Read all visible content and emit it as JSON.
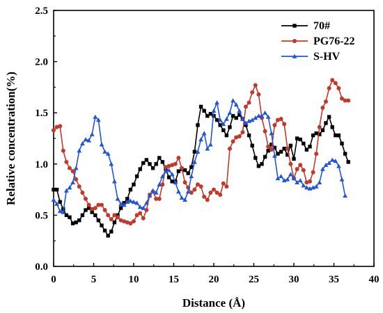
{
  "chart_data": {
    "type": "line",
    "title": "",
    "xlabel": "Distance (Å)",
    "ylabel": "Relative concentration(%)",
    "xlim": [
      0,
      40
    ],
    "ylim": [
      0,
      2.5
    ],
    "x_ticks": [
      0,
      5,
      10,
      15,
      20,
      25,
      30,
      35,
      40
    ],
    "y_ticks": [
      0.0,
      0.5,
      1.0,
      1.5,
      2.0,
      2.5
    ],
    "x_tick_labels": [
      "0",
      "5",
      "10",
      "15",
      "20",
      "25",
      "30",
      "35",
      "40"
    ],
    "y_tick_labels": [
      "0.0",
      "0.5",
      "1.0",
      "1.5",
      "2.0",
      "2.5"
    ],
    "grid": false,
    "legend_position": "top-right",
    "series": [
      {
        "name": "70#",
        "color": "#000000",
        "marker": "square",
        "points": [
          [
            0,
            0.75
          ],
          [
            0.4,
            0.75
          ],
          [
            0.8,
            0.63
          ],
          [
            1.2,
            0.56
          ],
          [
            1.6,
            0.5
          ],
          [
            2.0,
            0.48
          ],
          [
            2.4,
            0.42
          ],
          [
            2.8,
            0.43
          ],
          [
            3.2,
            0.45
          ],
          [
            3.6,
            0.5
          ],
          [
            4.0,
            0.55
          ],
          [
            4.4,
            0.57
          ],
          [
            4.8,
            0.53
          ],
          [
            5.2,
            0.5
          ],
          [
            5.6,
            0.45
          ],
          [
            6.0,
            0.4
          ],
          [
            6.4,
            0.35
          ],
          [
            6.8,
            0.3
          ],
          [
            7.2,
            0.34
          ],
          [
            7.6,
            0.43
          ],
          [
            8.0,
            0.5
          ],
          [
            8.4,
            0.57
          ],
          [
            8.8,
            0.62
          ],
          [
            9.2,
            0.66
          ],
          [
            9.6,
            0.75
          ],
          [
            10.0,
            0.8
          ],
          [
            10.4,
            0.88
          ],
          [
            10.8,
            0.95
          ],
          [
            11.2,
            1.01
          ],
          [
            11.6,
            1.04
          ],
          [
            12.0,
            1.0
          ],
          [
            12.4,
            0.96
          ],
          [
            12.8,
            1.0
          ],
          [
            13.2,
            1.06
          ],
          [
            13.6,
            1.02
          ],
          [
            14.0,
            0.95
          ],
          [
            14.4,
            0.87
          ],
          [
            14.8,
            0.83
          ],
          [
            15.2,
            0.83
          ],
          [
            15.6,
            0.93
          ],
          [
            16.0,
            0.95
          ],
          [
            16.4,
            0.94
          ],
          [
            16.8,
            0.91
          ],
          [
            17.2,
            0.97
          ],
          [
            17.6,
            1.12
          ],
          [
            18.0,
            1.38
          ],
          [
            18.4,
            1.56
          ],
          [
            18.8,
            1.52
          ],
          [
            19.2,
            1.47
          ],
          [
            19.6,
            1.49
          ],
          [
            20.0,
            1.47
          ],
          [
            20.4,
            1.43
          ],
          [
            20.8,
            1.38
          ],
          [
            21.2,
            1.33
          ],
          [
            21.6,
            1.28
          ],
          [
            22.0,
            1.36
          ],
          [
            22.4,
            1.47
          ],
          [
            22.8,
            1.45
          ],
          [
            23.2,
            1.48
          ],
          [
            23.6,
            1.44
          ],
          [
            24.0,
            1.38
          ],
          [
            24.4,
            1.28
          ],
          [
            24.8,
            1.18
          ],
          [
            25.2,
            1.06
          ],
          [
            25.6,
            0.98
          ],
          [
            26.0,
            1.0
          ],
          [
            26.4,
            1.07
          ],
          [
            26.8,
            1.13
          ],
          [
            27.2,
            1.19
          ],
          [
            27.6,
            1.16
          ],
          [
            28.0,
            1.1
          ],
          [
            28.4,
            1.12
          ],
          [
            28.8,
            1.15
          ],
          [
            29.2,
            1.09
          ],
          [
            29.6,
            1.18
          ],
          [
            30.0,
            1.05
          ],
          [
            30.4,
            1.25
          ],
          [
            30.8,
            1.24
          ],
          [
            31.2,
            1.2
          ],
          [
            31.6,
            1.14
          ],
          [
            32.0,
            1.17
          ],
          [
            32.4,
            1.28
          ],
          [
            32.8,
            1.3
          ],
          [
            33.2,
            1.29
          ],
          [
            33.6,
            1.33
          ],
          [
            34.0,
            1.4
          ],
          [
            34.4,
            1.46
          ],
          [
            34.8,
            1.36
          ],
          [
            35.2,
            1.28
          ],
          [
            35.6,
            1.28
          ],
          [
            36.0,
            1.2
          ],
          [
            36.4,
            1.1
          ],
          [
            36.8,
            1.02
          ]
        ]
      },
      {
        "name": "PG76-22",
        "color": "#c0392b",
        "marker": "circle",
        "points": [
          [
            0,
            1.33
          ],
          [
            0.4,
            1.36
          ],
          [
            0.8,
            1.37
          ],
          [
            1.2,
            1.13
          ],
          [
            1.6,
            1.02
          ],
          [
            2.0,
            0.96
          ],
          [
            2.4,
            0.93
          ],
          [
            2.8,
            0.85
          ],
          [
            3.2,
            0.78
          ],
          [
            3.6,
            0.72
          ],
          [
            4.0,
            0.66
          ],
          [
            4.4,
            0.6
          ],
          [
            4.8,
            0.56
          ],
          [
            5.2,
            0.57
          ],
          [
            5.6,
            0.6
          ],
          [
            6.0,
            0.6
          ],
          [
            6.4,
            0.55
          ],
          [
            6.8,
            0.5
          ],
          [
            7.2,
            0.46
          ],
          [
            7.6,
            0.5
          ],
          [
            8.0,
            0.48
          ],
          [
            8.4,
            0.45
          ],
          [
            8.8,
            0.44
          ],
          [
            9.2,
            0.43
          ],
          [
            9.6,
            0.42
          ],
          [
            10.0,
            0.44
          ],
          [
            10.4,
            0.5
          ],
          [
            10.8,
            0.52
          ],
          [
            11.2,
            0.47
          ],
          [
            11.6,
            0.55
          ],
          [
            12.0,
            0.7
          ],
          [
            12.4,
            0.73
          ],
          [
            12.8,
            0.66
          ],
          [
            13.2,
            0.66
          ],
          [
            13.6,
            0.8
          ],
          [
            14.0,
            0.97
          ],
          [
            14.4,
            0.98
          ],
          [
            14.8,
            0.99
          ],
          [
            15.2,
            1.0
          ],
          [
            15.6,
            1.06
          ],
          [
            16.0,
            0.96
          ],
          [
            16.4,
            0.82
          ],
          [
            16.8,
            0.77
          ],
          [
            17.2,
            0.72
          ],
          [
            17.6,
            0.75
          ],
          [
            18.0,
            0.8
          ],
          [
            18.4,
            0.78
          ],
          [
            18.8,
            0.68
          ],
          [
            19.2,
            0.65
          ],
          [
            19.6,
            0.72
          ],
          [
            20.0,
            0.75
          ],
          [
            20.4,
            0.72
          ],
          [
            20.8,
            0.7
          ],
          [
            21.2,
            0.81
          ],
          [
            21.6,
            0.78
          ],
          [
            22.0,
            1.15
          ],
          [
            22.4,
            1.22
          ],
          [
            22.8,
            1.26
          ],
          [
            23.2,
            1.27
          ],
          [
            23.6,
            1.31
          ],
          [
            24.0,
            1.56
          ],
          [
            24.4,
            1.6
          ],
          [
            24.8,
            1.7
          ],
          [
            25.2,
            1.77
          ],
          [
            25.6,
            1.68
          ],
          [
            26.0,
            1.45
          ],
          [
            26.4,
            1.32
          ],
          [
            26.8,
            1.17
          ],
          [
            27.2,
            1.14
          ],
          [
            27.6,
            1.38
          ],
          [
            28.0,
            1.43
          ],
          [
            28.4,
            1.44
          ],
          [
            28.8,
            1.39
          ],
          [
            29.2,
            1.15
          ],
          [
            29.6,
            1.0
          ],
          [
            30.0,
            0.86
          ],
          [
            30.4,
            0.95
          ],
          [
            30.8,
            0.99
          ],
          [
            31.2,
            0.94
          ],
          [
            31.6,
            0.82
          ],
          [
            32.0,
            0.83
          ],
          [
            32.4,
            0.92
          ],
          [
            32.8,
            1.1
          ],
          [
            33.2,
            1.36
          ],
          [
            33.6,
            1.55
          ],
          [
            34.0,
            1.61
          ],
          [
            34.4,
            1.74
          ],
          [
            34.8,
            1.82
          ],
          [
            35.2,
            1.79
          ],
          [
            35.6,
            1.74
          ],
          [
            36.0,
            1.64
          ],
          [
            36.4,
            1.62
          ],
          [
            36.8,
            1.62
          ]
        ]
      },
      {
        "name": "S-HV",
        "color": "#1f55d6",
        "marker": "triangle",
        "points": [
          [
            0,
            0.65
          ],
          [
            0.4,
            0.61
          ],
          [
            0.8,
            0.54
          ],
          [
            1.2,
            0.53
          ],
          [
            1.6,
            0.74
          ],
          [
            2.0,
            0.77
          ],
          [
            2.4,
            0.82
          ],
          [
            2.8,
            0.96
          ],
          [
            3.2,
            1.13
          ],
          [
            3.6,
            1.2
          ],
          [
            4.0,
            1.24
          ],
          [
            4.4,
            1.23
          ],
          [
            4.8,
            1.29
          ],
          [
            5.2,
            1.46
          ],
          [
            5.6,
            1.43
          ],
          [
            6.0,
            1.19
          ],
          [
            6.4,
            1.12
          ],
          [
            6.8,
            1.1
          ],
          [
            7.2,
            1.0
          ],
          [
            7.6,
            0.83
          ],
          [
            8.0,
            0.66
          ],
          [
            8.4,
            0.61
          ],
          [
            8.8,
            0.6
          ],
          [
            9.2,
            0.63
          ],
          [
            9.6,
            0.64
          ],
          [
            10.0,
            0.63
          ],
          [
            10.4,
            0.62
          ],
          [
            10.8,
            0.58
          ],
          [
            11.2,
            0.57
          ],
          [
            11.6,
            0.62
          ],
          [
            12.0,
            0.69
          ],
          [
            12.4,
            0.74
          ],
          [
            12.8,
            0.72
          ],
          [
            13.2,
            0.8
          ],
          [
            13.6,
            0.88
          ],
          [
            14.0,
            0.93
          ],
          [
            14.4,
            0.94
          ],
          [
            14.8,
            0.9
          ],
          [
            15.2,
            0.82
          ],
          [
            15.6,
            0.73
          ],
          [
            16.0,
            0.67
          ],
          [
            16.4,
            0.65
          ],
          [
            16.8,
            0.73
          ],
          [
            17.2,
            0.88
          ],
          [
            17.6,
            1.02
          ],
          [
            18.0,
            1.12
          ],
          [
            18.4,
            1.24
          ],
          [
            18.8,
            1.3
          ],
          [
            19.2,
            1.15
          ],
          [
            19.6,
            1.19
          ],
          [
            20.0,
            1.52
          ],
          [
            20.4,
            1.6
          ],
          [
            20.8,
            1.43
          ],
          [
            21.2,
            1.39
          ],
          [
            21.6,
            1.44
          ],
          [
            22.0,
            1.5
          ],
          [
            22.4,
            1.62
          ],
          [
            22.8,
            1.58
          ],
          [
            23.2,
            1.52
          ],
          [
            23.6,
            1.44
          ],
          [
            24.0,
            1.4
          ],
          [
            24.4,
            1.42
          ],
          [
            24.8,
            1.43
          ],
          [
            25.2,
            1.45
          ],
          [
            25.6,
            1.47
          ],
          [
            26.0,
            1.47
          ],
          [
            26.4,
            1.5
          ],
          [
            26.8,
            1.46
          ],
          [
            27.2,
            1.3
          ],
          [
            27.6,
            1.08
          ],
          [
            28.0,
            0.86
          ],
          [
            28.4,
            0.88
          ],
          [
            28.8,
            0.84
          ],
          [
            29.2,
            0.85
          ],
          [
            29.6,
            0.9
          ],
          [
            30.0,
            0.86
          ],
          [
            30.4,
            0.82
          ],
          [
            30.8,
            0.84
          ],
          [
            31.2,
            0.79
          ],
          [
            31.6,
            0.77
          ],
          [
            32.0,
            0.76
          ],
          [
            32.4,
            0.77
          ],
          [
            32.8,
            0.78
          ],
          [
            33.2,
            0.82
          ],
          [
            33.6,
            0.95
          ],
          [
            34.0,
            0.99
          ],
          [
            34.4,
            1.01
          ],
          [
            34.8,
            1.04
          ],
          [
            35.2,
            1.03
          ],
          [
            35.6,
            0.98
          ],
          [
            36.0,
            0.85
          ],
          [
            36.4,
            0.69
          ]
        ]
      }
    ]
  }
}
